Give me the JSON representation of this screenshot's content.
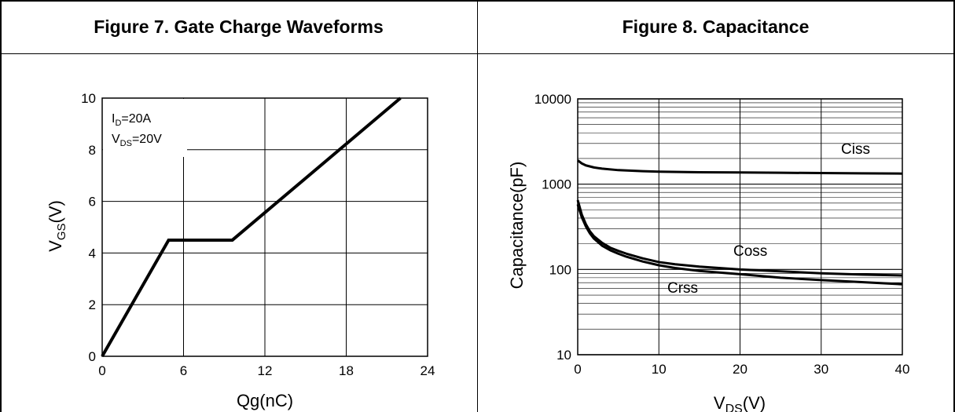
{
  "figure7": {
    "title": "Figure 7. Gate Charge Waveforms",
    "chart_data": {
      "type": "line",
      "x_label_main": "Qg(nC)",
      "y_label_main": "V",
      "y_label_sub": "GS",
      "y_label_unit": "(V)",
      "xlim": [
        0,
        24
      ],
      "ylim": [
        0,
        10
      ],
      "x_ticks": [
        "0",
        "6",
        "12",
        "18",
        "24"
      ],
      "y_ticks": [
        "0",
        "2",
        "4",
        "6",
        "8",
        "10"
      ],
      "grid": true,
      "annotations": [
        {
          "main": "I",
          "sub": "D",
          "rest": "=20A"
        },
        {
          "main": "V",
          "sub": "DS",
          "rest": "=20V"
        }
      ],
      "series": [
        {
          "x": [
            0,
            4.9,
            9.6,
            22
          ],
          "y": [
            0,
            4.5,
            4.5,
            10
          ]
        }
      ]
    }
  },
  "figure8": {
    "title": "Figure 8. Capacitance",
    "chart_data": {
      "type": "line",
      "x_label_main": "V",
      "x_label_sub": "DS",
      "x_label_unit": "(V)",
      "y_label": "Capacitance(pF)",
      "xlim": [
        0,
        40
      ],
      "ylim": [
        10,
        10000
      ],
      "y_scale": "log",
      "x_ticks": [
        "0",
        "10",
        "20",
        "30",
        "40"
      ],
      "y_ticks": [
        "10",
        "100",
        "1000",
        "10000"
      ],
      "grid": true,
      "series": [
        {
          "name": "Ciss",
          "x": [
            0,
            0.5,
            1,
            2,
            3,
            5,
            8,
            10,
            15,
            20,
            25,
            30,
            35,
            40
          ],
          "y": [
            1900,
            1750,
            1660,
            1570,
            1520,
            1460,
            1420,
            1400,
            1380,
            1370,
            1360,
            1350,
            1340,
            1330
          ]
        },
        {
          "name": "Coss",
          "x": [
            0,
            0.5,
            1,
            1.5,
            2,
            3,
            4,
            5,
            6,
            8,
            10,
            12,
            15,
            20,
            25,
            30,
            35,
            40
          ],
          "y": [
            650,
            440,
            340,
            280,
            245,
            205,
            180,
            165,
            153,
            135,
            122,
            115,
            108,
            100,
            95,
            90,
            87,
            85
          ]
        },
        {
          "name": "Crss",
          "x": [
            0,
            0.5,
            1,
            1.5,
            2,
            3,
            4,
            5,
            6,
            8,
            10,
            12,
            15,
            20,
            25,
            30,
            35,
            40
          ],
          "y": [
            580,
            410,
            320,
            265,
            230,
            190,
            168,
            153,
            141,
            124,
            112,
            104,
            96,
            88,
            80,
            75,
            71,
            67
          ]
        }
      ]
    }
  }
}
